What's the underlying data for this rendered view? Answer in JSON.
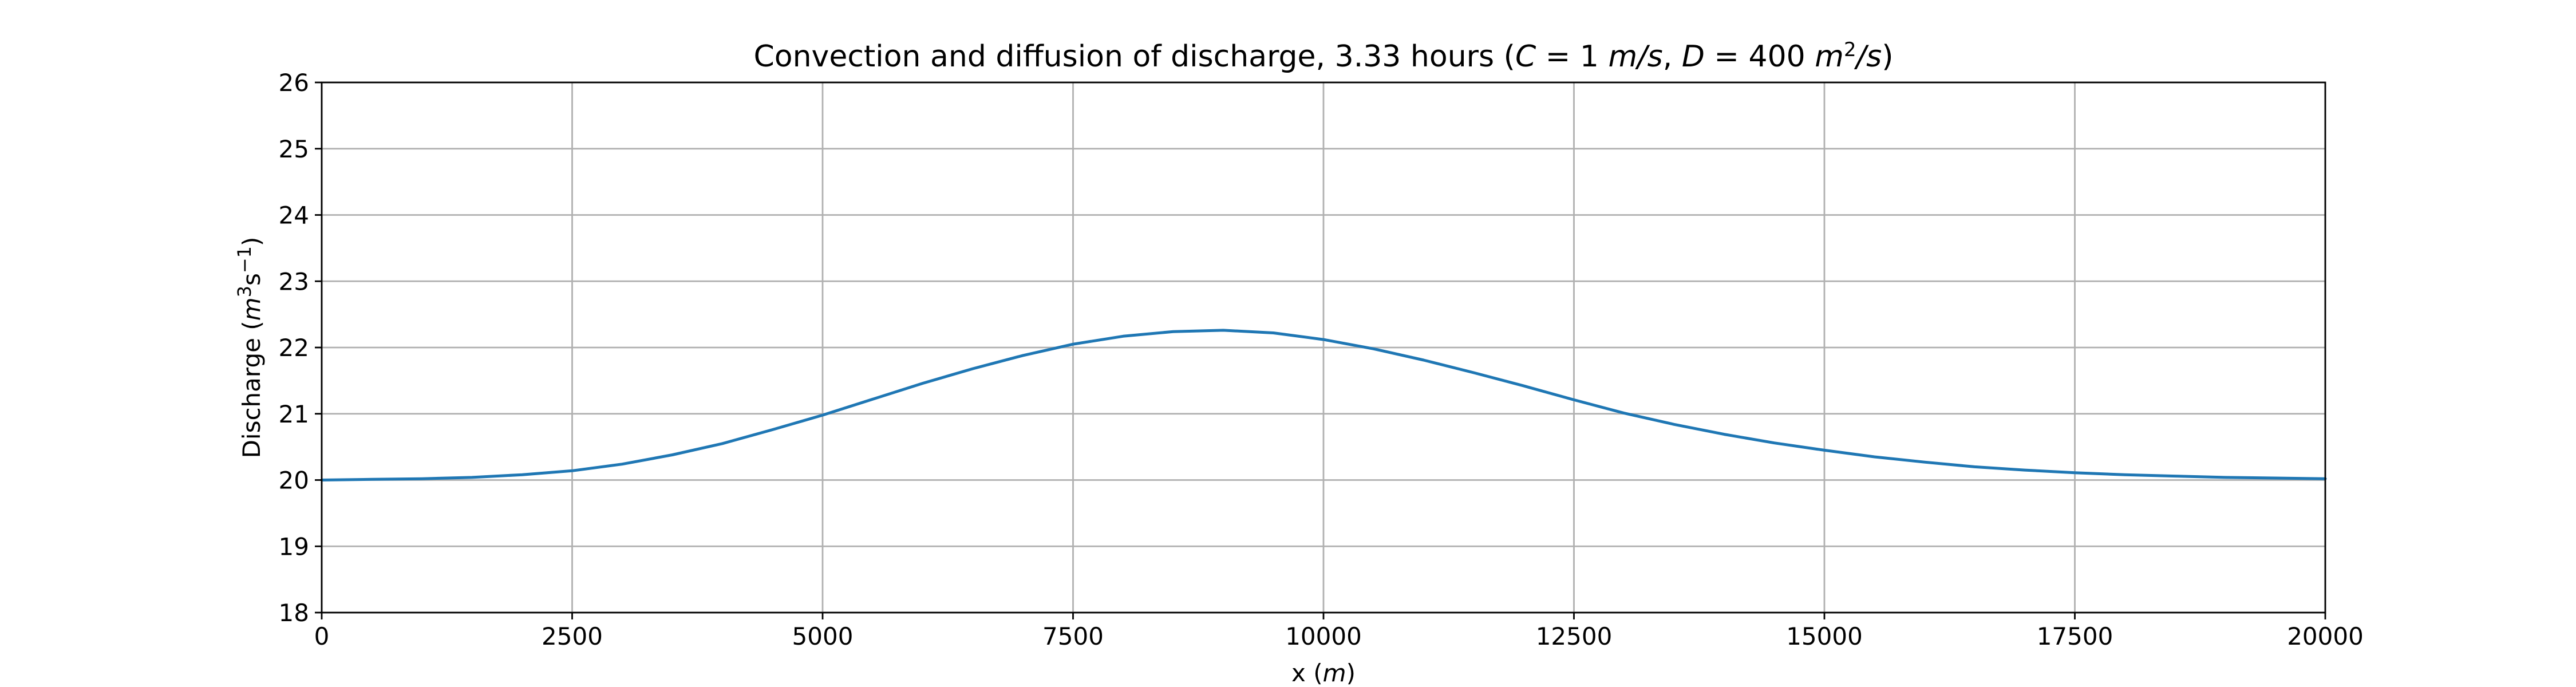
{
  "chart_data": {
    "type": "line",
    "title": {
      "prefix": "Convection and diffusion of discharge, 3.33 hours (",
      "c_label": "C",
      "c_value": " = 1 ",
      "c_unit": "m/s",
      "separator": ", ",
      "d_label": "D",
      "d_value": " = 400 ",
      "d_unit_base": "m",
      "d_unit_exp": "2",
      "d_unit_tail": "/s",
      "suffix": ")"
    },
    "xlabel": {
      "text": "x (",
      "unit": "m",
      "close": ")"
    },
    "ylabel": {
      "text": "Discharge (",
      "unit_base": "m",
      "unit_exp": "3",
      "unit_mid": "s",
      "unit_exp2": "−1",
      "close": ")"
    },
    "xlim": [
      0,
      20000
    ],
    "ylim": [
      18,
      26
    ],
    "xticks": [
      0,
      2500,
      5000,
      7500,
      10000,
      12500,
      15000,
      17500,
      20000
    ],
    "yticks": [
      18,
      19,
      20,
      21,
      22,
      23,
      24,
      25,
      26
    ],
    "grid": true,
    "series_color": "#1f77b4",
    "x": [
      0,
      500,
      1000,
      1500,
      2000,
      2500,
      3000,
      3500,
      4000,
      4500,
      5000,
      5500,
      6000,
      6500,
      7000,
      7500,
      8000,
      8500,
      9000,
      9500,
      10000,
      10500,
      11000,
      11500,
      12000,
      12500,
      13000,
      13500,
      14000,
      14500,
      15000,
      15500,
      16000,
      16500,
      17000,
      17500,
      18000,
      18500,
      19000,
      19500,
      20000
    ],
    "y": [
      20.0,
      20.01,
      20.02,
      20.04,
      20.08,
      20.14,
      20.24,
      20.38,
      20.55,
      20.76,
      20.98,
      21.22,
      21.46,
      21.68,
      21.88,
      22.05,
      22.17,
      22.24,
      22.26,
      22.22,
      22.12,
      21.98,
      21.81,
      21.62,
      21.42,
      21.21,
      21.01,
      20.84,
      20.69,
      20.56,
      20.45,
      20.35,
      20.27,
      20.2,
      20.15,
      20.11,
      20.08,
      20.06,
      20.04,
      20.03,
      20.02
    ]
  }
}
